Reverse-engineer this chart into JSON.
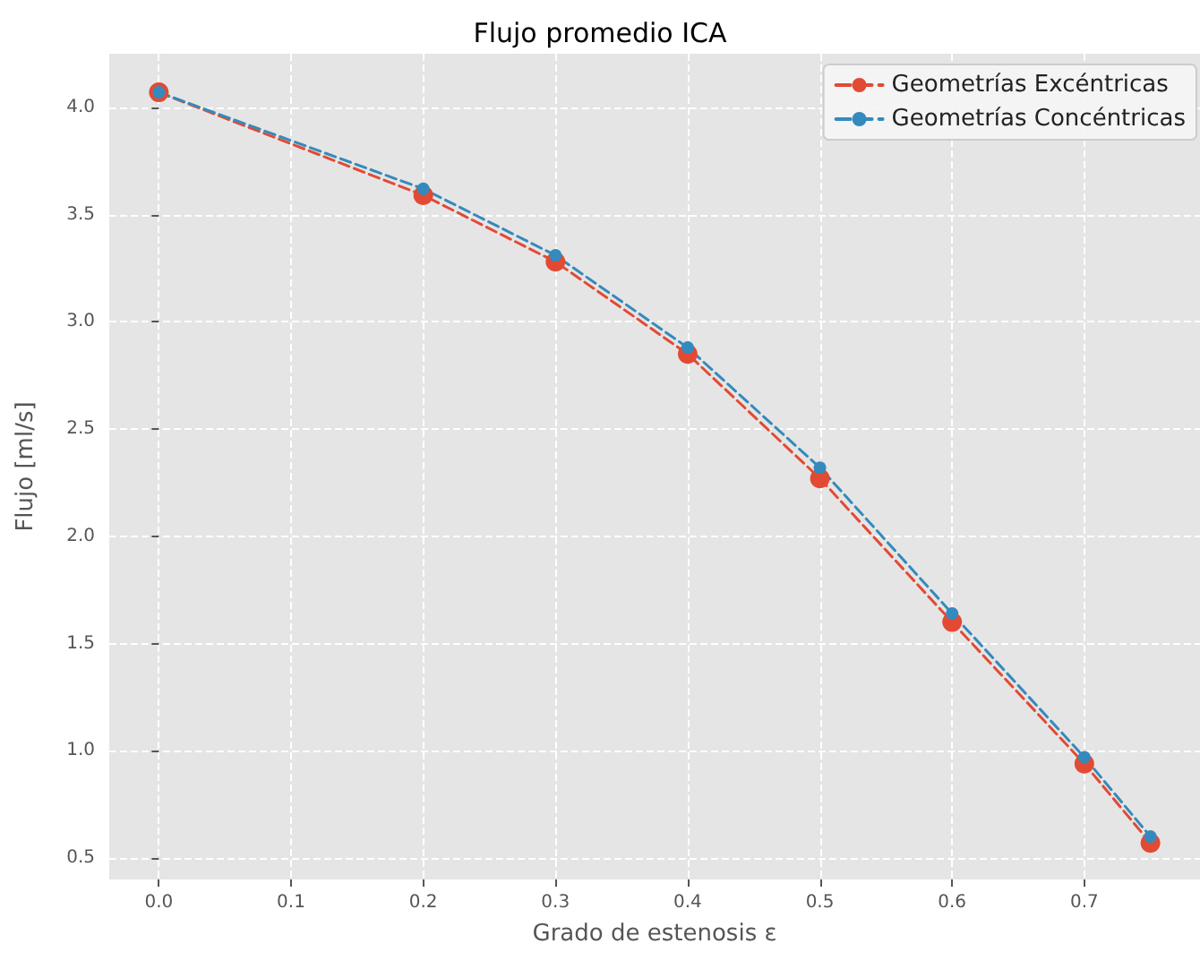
{
  "chart_data": {
    "type": "line",
    "title": "Flujo promedio ICA",
    "xlabel": "Grado de estenosis ε",
    "ylabel": "Flujo [ml/s]",
    "x": [
      0.0,
      0.2,
      0.3,
      0.4,
      0.5,
      0.6,
      0.7,
      0.75
    ],
    "series": [
      {
        "name": "Geometrías Excéntricas",
        "color": "#e24a33",
        "values": [
          4.07,
          3.59,
          3.28,
          2.85,
          2.27,
          1.6,
          0.94,
          0.57
        ]
      },
      {
        "name": "Geometrías Concéntricas",
        "color": "#348abd",
        "values": [
          4.07,
          3.62,
          3.31,
          2.88,
          2.32,
          1.64,
          0.97,
          0.6
        ]
      }
    ],
    "xlim": [
      -0.0375,
      0.7875
    ],
    "xticks": [
      {
        "value": 0,
        "label": "0.0"
      },
      0.1,
      0.2,
      0.3,
      0.4,
      0.5,
      0.6,
      0.7
    ],
    "ylim": [
      0.4,
      4.25
    ],
    "yticks": [
      0.5,
      {
        "value": 1,
        "label": "1.0"
      },
      1.5,
      {
        "value": 2,
        "label": "2.0"
      },
      2.5,
      {
        "value": 3,
        "label": "3.0"
      },
      3.5,
      {
        "value": 4,
        "label": "4.0"
      }
    ],
    "grid": true,
    "legend": "top right",
    "marker": "circle",
    "line_style": "dashed"
  }
}
